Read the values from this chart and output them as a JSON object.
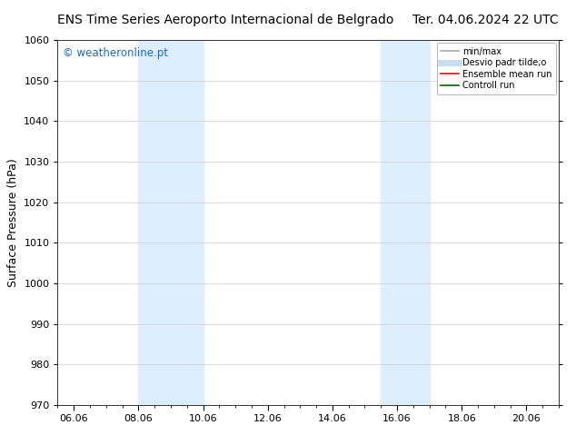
{
  "title_left": "ENS Time Series Aeroporto Internacional de Belgrado",
  "title_right": "Ter. 04.06.2024 22 UTC",
  "ylabel": "Surface Pressure (hPa)",
  "ylim": [
    970,
    1060
  ],
  "yticks": [
    970,
    980,
    990,
    1000,
    1010,
    1020,
    1030,
    1040,
    1050,
    1060
  ],
  "xlim_start": 5.5,
  "xlim_end": 21.0,
  "xtick_labels": [
    "06.06",
    "08.06",
    "10.06",
    "12.06",
    "14.06",
    "16.06",
    "18.06",
    "20.06"
  ],
  "xtick_positions": [
    6.0,
    8.0,
    10.0,
    12.0,
    14.0,
    16.0,
    18.0,
    20.0
  ],
  "shaded_bands": [
    {
      "x_start": 8.0,
      "x_end": 10.0,
      "color": "#ddeeff"
    },
    {
      "x_start": 15.5,
      "x_end": 17.0,
      "color": "#ddeeff"
    }
  ],
  "watermark_text": "© weatheronline.pt",
  "watermark_color": "#1a6bb5",
  "legend_entries": [
    {
      "label": "min/max",
      "color": "#aaaaaa",
      "lw": 1.2,
      "linestyle": "-"
    },
    {
      "label": "Desvio padr tilde;o",
      "color": "#c8ddf0",
      "lw": 5,
      "linestyle": "-"
    },
    {
      "label": "Ensemble mean run",
      "color": "#ff0000",
      "lw": 1.2,
      "linestyle": "-"
    },
    {
      "label": "Controll run",
      "color": "#006600",
      "lw": 1.2,
      "linestyle": "-"
    }
  ],
  "bg_color": "#ffffff",
  "plot_bg_color": "#ffffff",
  "grid_color": "#cccccc",
  "title_fontsize": 10,
  "label_fontsize": 9,
  "tick_fontsize": 8
}
